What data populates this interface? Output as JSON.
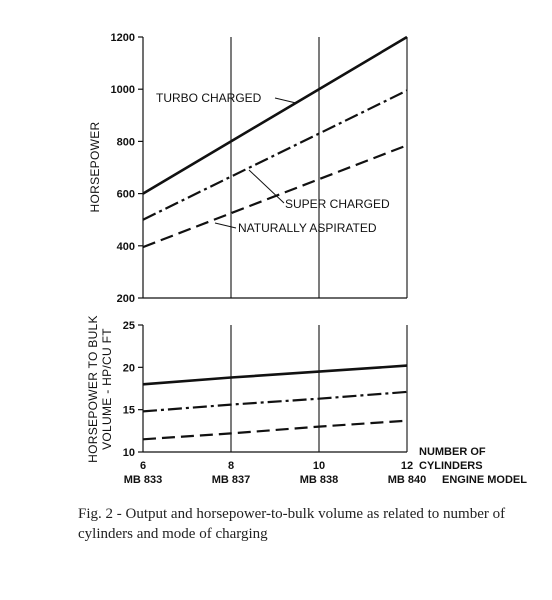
{
  "chart_data": [
    {
      "type": "line",
      "ylabel": "HORSEPOWER",
      "ylim": [
        200,
        1200
      ],
      "yticks": [
        200,
        400,
        600,
        800,
        1000,
        1200
      ],
      "x": [
        6,
        8,
        10,
        12
      ],
      "series": [
        {
          "name": "TURBO CHARGED",
          "style": "solid",
          "values": [
            600,
            800,
            1000,
            1200
          ]
        },
        {
          "name": "SUPER CHARGED",
          "style": "dash-dot",
          "values": [
            500,
            665,
            830,
            995
          ]
        },
        {
          "name": "NATURALLY ASPIRATED",
          "style": "dashed",
          "values": [
            395,
            525,
            655,
            785
          ]
        }
      ]
    },
    {
      "type": "line",
      "ylabel": "HORSEPOWER TO BULK VOLUME - HP/CU FT",
      "xlabel": "NUMBER OF CYLINDERS",
      "xlabel2": "ENGINE MODEL",
      "ylim": [
        10,
        25
      ],
      "yticks": [
        10,
        15,
        20,
        25
      ],
      "x": [
        6,
        8,
        10,
        12
      ],
      "xticks": [
        "6",
        "8",
        "10",
        "12"
      ],
      "models": [
        "MB 833",
        "MB 837",
        "MB 838",
        "MB 840"
      ],
      "series": [
        {
          "style": "solid",
          "values": [
            18.0,
            18.8,
            19.5,
            20.2
          ]
        },
        {
          "style": "dash-dot",
          "values": [
            14.8,
            15.6,
            16.3,
            17.1
          ]
        },
        {
          "style": "dashed",
          "values": [
            11.5,
            12.2,
            13.0,
            13.7
          ]
        }
      ]
    }
  ],
  "caption": "Fig. 2 - Output and horsepower-to-bulk volume as related to number of cylinders and mode of charging"
}
